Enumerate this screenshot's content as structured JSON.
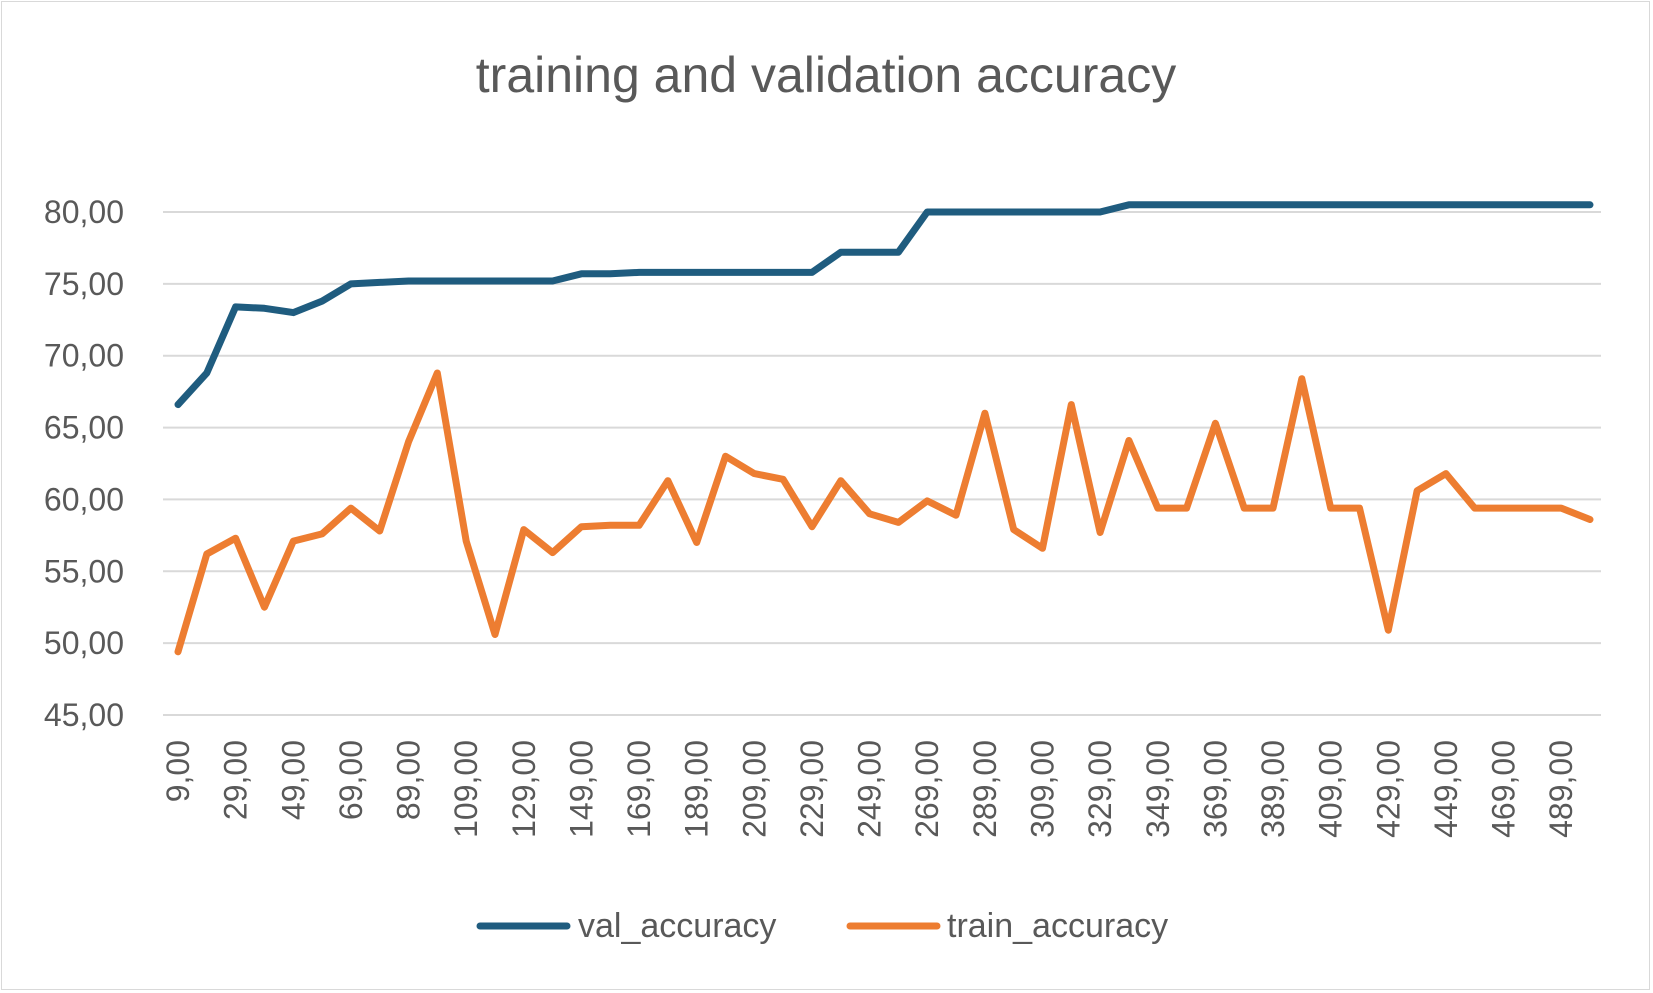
{
  "chart_data": {
    "type": "line",
    "title": "training and validation accuracy",
    "xlabel": "",
    "ylabel": "",
    "x": [
      9,
      19,
      29,
      39,
      49,
      59,
      69,
      79,
      89,
      99,
      109,
      119,
      129,
      139,
      149,
      159,
      169,
      179,
      189,
      199,
      209,
      219,
      229,
      239,
      249,
      259,
      269,
      279,
      289,
      299,
      309,
      319,
      329,
      339,
      349,
      359,
      369,
      379,
      389,
      399,
      409,
      419,
      429,
      439,
      449,
      459,
      469,
      479,
      489,
      499
    ],
    "x_tick_labels": [
      "9,00",
      "29,00",
      "49,00",
      "69,00",
      "89,00",
      "109,00",
      "129,00",
      "149,00",
      "169,00",
      "189,00",
      "209,00",
      "229,00",
      "249,00",
      "269,00",
      "289,00",
      "309,00",
      "329,00",
      "349,00",
      "369,00",
      "389,00",
      "409,00",
      "429,00",
      "449,00",
      "469,00",
      "489,00"
    ],
    "y_tick_labels": [
      "45,00",
      "50,00",
      "55,00",
      "60,00",
      "65,00",
      "70,00",
      "75,00",
      "80,00"
    ],
    "y_ticks": [
      45,
      50,
      55,
      60,
      65,
      70,
      75,
      80
    ],
    "ylim": [
      45,
      80
    ],
    "grid": true,
    "legend_position": "bottom",
    "series": [
      {
        "name": "val_accuracy",
        "color": "#1f5c7f",
        "values": [
          66.6,
          68.8,
          73.4,
          73.3,
          73.0,
          73.8,
          75.0,
          75.1,
          75.2,
          75.2,
          75.2,
          75.2,
          75.2,
          75.2,
          75.7,
          75.7,
          75.8,
          75.8,
          75.8,
          75.8,
          75.8,
          75.8,
          75.8,
          77.2,
          77.2,
          77.2,
          80.0,
          80.0,
          80.0,
          80.0,
          80.0,
          80.0,
          80.0,
          80.5,
          80.5,
          80.5,
          80.5,
          80.5,
          80.5,
          80.5,
          80.5,
          80.5,
          80.5,
          80.5,
          80.5,
          80.5,
          80.5,
          80.5,
          80.5,
          80.5
        ]
      },
      {
        "name": "train_accuracy",
        "color": "#ed7d31",
        "values": [
          49.4,
          56.2,
          57.3,
          52.5,
          57.1,
          57.6,
          59.4,
          57.8,
          64.0,
          68.8,
          57.1,
          50.6,
          57.9,
          56.3,
          58.1,
          58.2,
          58.2,
          61.3,
          57.0,
          63.0,
          61.8,
          61.4,
          58.1,
          61.3,
          59.0,
          58.4,
          59.9,
          58.9,
          66.0,
          57.9,
          56.6,
          66.6,
          57.7,
          64.1,
          59.4,
          59.4,
          65.3,
          59.4,
          59.4,
          68.4,
          59.4,
          59.4,
          50.9,
          60.6,
          61.8,
          59.4,
          59.4,
          59.4,
          59.4,
          58.6
        ]
      }
    ]
  }
}
